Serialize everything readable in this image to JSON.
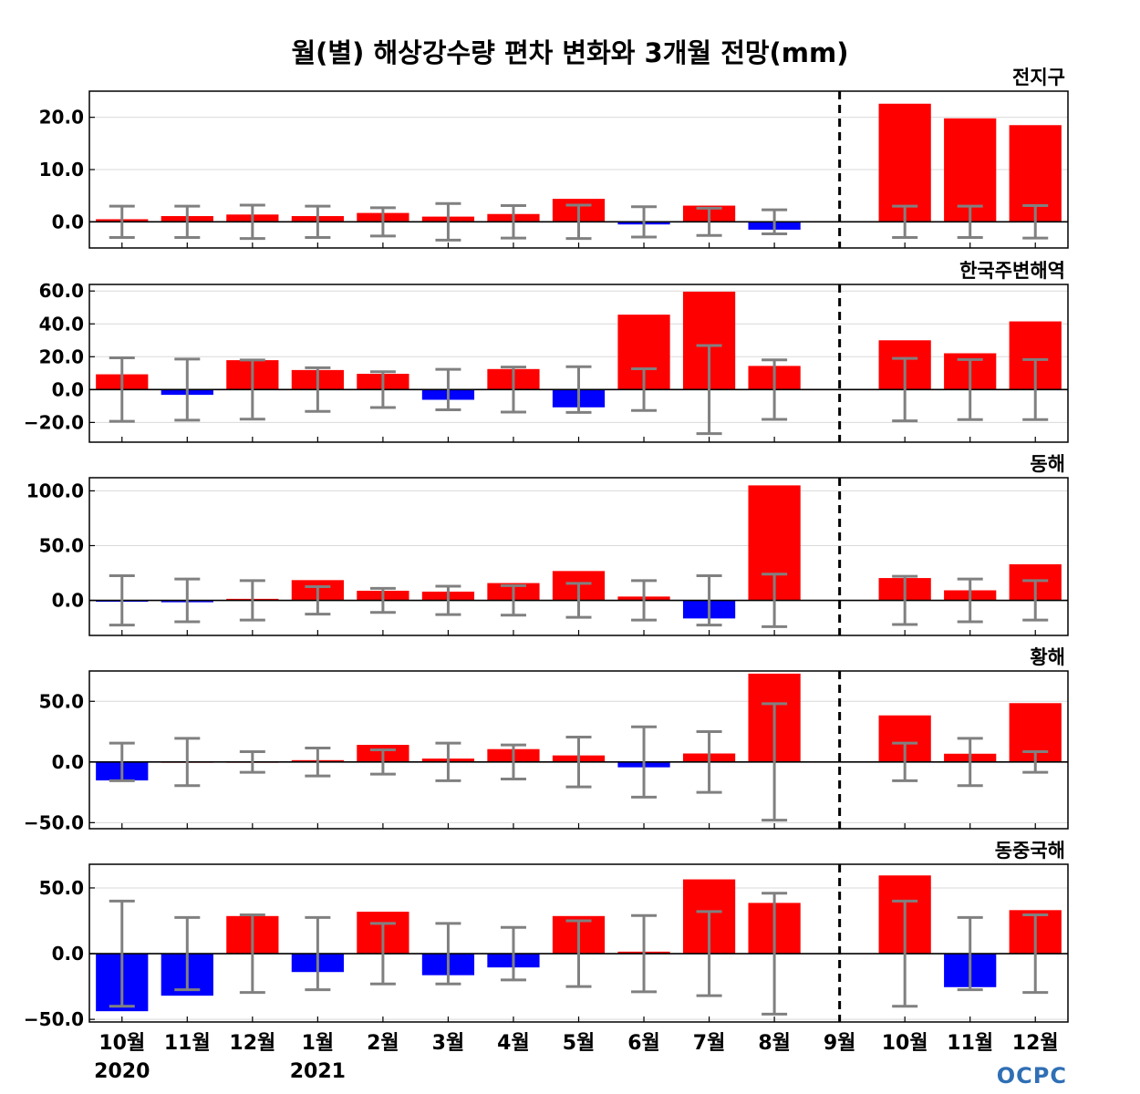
{
  "colors": {
    "positive": "#ff0000",
    "negative": "#0000ff",
    "error_bar": "#808080",
    "grid": "#d9d9d9",
    "axis": "#000000",
    "logo": "#2f6fb5"
  },
  "logo_text": "OCPC",
  "chart_data": {
    "type": "bar",
    "title": "월(별) 해상강수량 편차 변화와 3개월 전망(mm)",
    "categories": [
      "10월",
      "11월",
      "12월",
      "1월",
      "2월",
      "3월",
      "4월",
      "5월",
      "6월",
      "7월",
      "8월",
      "9월",
      "10월",
      "11월",
      "12월"
    ],
    "year_labels": [
      {
        "category_index": 0,
        "text": "2020"
      },
      {
        "category_index": 3,
        "text": "2021"
      }
    ],
    "divider_after_category_index": 11,
    "grid": true,
    "panels": [
      {
        "name": "전지구",
        "ylim": [
          -5,
          25
        ],
        "yticks": [
          0,
          10,
          20
        ],
        "ytick_labels": [
          "0.0",
          "10.0",
          "20.0"
        ],
        "values": [
          0.5,
          1.1,
          1.4,
          1.1,
          1.7,
          1.0,
          1.5,
          4.4,
          -0.5,
          3.1,
          -1.5,
          0,
          22.6,
          19.8,
          18.5
        ],
        "error": [
          3.0,
          3.0,
          3.2,
          3.0,
          2.7,
          3.5,
          3.1,
          3.2,
          2.9,
          2.6,
          2.3,
          0,
          3.0,
          3.0,
          3.1
        ]
      },
      {
        "name": "한국주변해역",
        "ylim": [
          -32,
          64
        ],
        "yticks": [
          -20,
          0,
          20,
          40,
          60
        ],
        "ytick_labels": [
          "−20.0",
          "0.0",
          "20.0",
          "40.0",
          "60.0"
        ],
        "values": [
          9.3,
          -3.2,
          17.9,
          11.9,
          9.6,
          -6.2,
          12.5,
          -10.8,
          45.6,
          59.6,
          14.4,
          0,
          30.0,
          22.1,
          41.5
        ],
        "error": [
          19.3,
          18.6,
          18.0,
          13.3,
          10.9,
          12.3,
          13.7,
          13.9,
          12.7,
          26.8,
          18.1,
          0,
          19.0,
          18.3,
          18.3
        ]
      },
      {
        "name": "동해",
        "ylim": [
          -32,
          112
        ],
        "yticks": [
          0,
          50,
          100
        ],
        "ytick_labels": [
          "0.0",
          "50.0",
          "100.0"
        ],
        "values": [
          -1.2,
          -1.7,
          1.4,
          18.5,
          8.8,
          8.0,
          15.8,
          26.8,
          3.5,
          -16.5,
          105.0,
          0,
          20.4,
          9.2,
          33.0
        ],
        "error": [
          22.5,
          19.5,
          18.0,
          12.5,
          11.0,
          13.0,
          13.5,
          15.5,
          18.0,
          22.5,
          24.0,
          0,
          22.0,
          19.5,
          18.0
        ]
      },
      {
        "name": "황해",
        "ylim": [
          -55,
          75
        ],
        "yticks": [
          -50,
          0,
          50
        ],
        "ytick_labels": [
          "−50.0",
          "0.0",
          "50.0"
        ],
        "values": [
          -15.2,
          0.5,
          0.5,
          1.5,
          14.1,
          2.8,
          10.6,
          5.4,
          -4.4,
          7.0,
          72.8,
          0,
          38.4,
          6.8,
          48.5
        ],
        "error": [
          15.5,
          19.5,
          8.5,
          11.5,
          10.0,
          15.5,
          14.0,
          20.5,
          29.0,
          25.0,
          48.0,
          0,
          15.5,
          19.5,
          8.5
        ]
      },
      {
        "name": "동중국해",
        "ylim": [
          -52,
          68
        ],
        "yticks": [
          -50,
          0,
          50
        ],
        "ytick_labels": [
          "−50.0",
          "0.0",
          "50.0"
        ],
        "values": [
          -43.8,
          -32.0,
          28.6,
          -14.0,
          31.9,
          -16.4,
          -10.5,
          28.6,
          1.5,
          56.5,
          38.6,
          0,
          59.5,
          -25.5,
          33.1
        ],
        "error": [
          40.0,
          27.5,
          29.5,
          27.5,
          23.0,
          23.0,
          20.0,
          25.0,
          29.0,
          32.0,
          46.0,
          0,
          40.0,
          27.5,
          29.5
        ]
      }
    ]
  }
}
